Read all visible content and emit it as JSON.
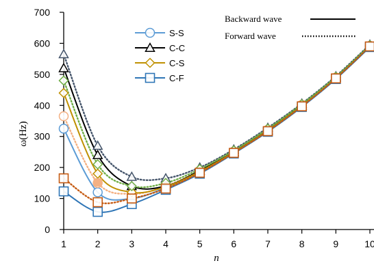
{
  "chart_data": {
    "type": "line",
    "title": "",
    "xlabel": "n",
    "ylabel": "ω(Hz)",
    "xlim": [
      1,
      10
    ],
    "ylim": [
      0,
      700
    ],
    "x_ticks": [
      1,
      2,
      3,
      4,
      5,
      6,
      7,
      8,
      9,
      10
    ],
    "x_tick_labels": [
      "1",
      "2",
      "3",
      "4",
      "5",
      "6",
      "7",
      "8",
      "9",
      "10"
    ],
    "y_ticks": [
      0,
      100,
      200,
      300,
      400,
      500,
      600,
      700
    ],
    "grid": false,
    "legend_position": "top-center",
    "boundary_legend": [
      "S-S",
      "C-C",
      "C-S",
      "C-F"
    ],
    "wave_legend": [
      {
        "name": "Backward wave",
        "style": "solid"
      },
      {
        "name": "Forward wave",
        "style": "dotted"
      }
    ],
    "x": [
      1,
      2,
      3,
      4,
      5,
      6,
      7,
      8,
      9,
      10
    ],
    "series": [
      {
        "name": "S-S",
        "wave": "Backward wave",
        "color": "#5b9bd5",
        "marker": "circle",
        "values": [
          325,
          120,
          100,
          135,
          185,
          248,
          318,
          398,
          488,
          590
        ]
      },
      {
        "name": "S-S",
        "wave": "Forward wave",
        "color": "#f4b183",
        "marker": "circle",
        "values": [
          365,
          150,
          115,
          140,
          190,
          252,
          322,
          402,
          490,
          592
        ]
      },
      {
        "name": "C-C",
        "wave": "Backward wave",
        "color": "#000000",
        "marker": "triangle",
        "values": [
          520,
          240,
          140,
          140,
          190,
          250,
          320,
          400,
          490,
          592
        ]
      },
      {
        "name": "C-C",
        "wave": "Forward wave",
        "color": "#44546a",
        "marker": "triangle",
        "values": [
          565,
          270,
          170,
          165,
          200,
          258,
          328,
          406,
          494,
          596
        ]
      },
      {
        "name": "C-S",
        "wave": "Backward wave",
        "color": "#bf9000",
        "marker": "diamond",
        "values": [
          440,
          180,
          120,
          138,
          187,
          249,
          319,
          399,
          489,
          591
        ]
      },
      {
        "name": "C-S",
        "wave": "Forward wave",
        "color": "#70ad47",
        "marker": "diamond",
        "values": [
          480,
          210,
          140,
          150,
          195,
          255,
          325,
          404,
          492,
          594
        ]
      },
      {
        "name": "C-F",
        "wave": "Backward wave",
        "color": "#2e75b6",
        "marker": "square",
        "values": [
          123,
          57,
          82,
          128,
          180,
          245,
          315,
          395,
          485,
          588
        ]
      },
      {
        "name": "C-F",
        "wave": "Forward wave",
        "color": "#c55a11",
        "marker": "square",
        "values": [
          165,
          88,
          100,
          132,
          183,
          247,
          317,
          397,
          487,
          590
        ]
      }
    ],
    "annotations": [
      {
        "series": "S-S",
        "x": 2,
        "y": 152,
        "marker": "filled-square",
        "color": "#f4b183"
      }
    ]
  }
}
